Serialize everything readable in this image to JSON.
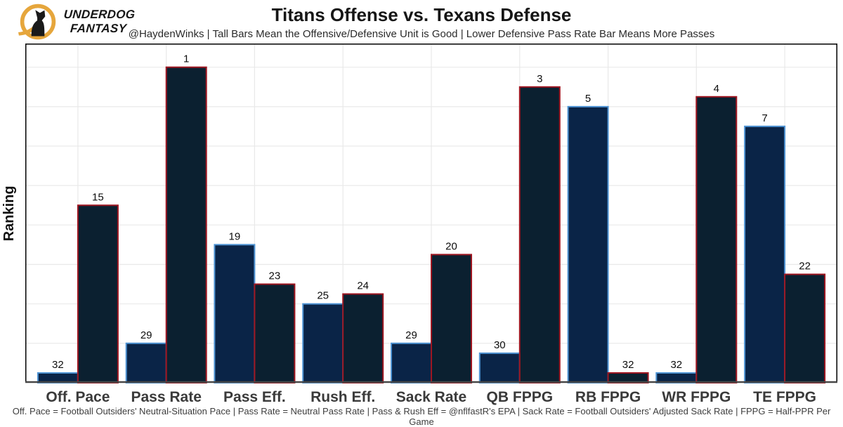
{
  "brand": {
    "line1": "UNDERDOG",
    "line2": "FANTASY"
  },
  "header": {
    "title": "Titans Offense vs. Texans Defense",
    "subtitle": "@HaydenWinks | Tall Bars Mean the Offensive/Defensive Unit is Good | Lower Defensive Pass Rate Bar Means More Passes"
  },
  "footer": {
    "note": "Off. Pace = Football Outsiders' Neutral-Situation Pace | Pass Rate = Neutral Pass Rate | Pass & Rush Eff = @nflfastR's EPA | Sack Rate = Football Outsiders' Adjusted Sack Rate | FPPG = Half-PPR Per Game"
  },
  "chart_data": {
    "type": "bar",
    "title": "Titans Offense vs. Texans Defense",
    "ylabel": "Ranking",
    "categories": [
      "Off. Pace",
      "Pass Rate",
      "Pass Eff.",
      "Rush Eff.",
      "Sack Rate",
      "QB FPPG",
      "RB FPPG",
      "WR FPPG",
      "TE FPPG"
    ],
    "series": [
      {
        "name": "Titans Offense",
        "values": [
          32,
          29,
          19,
          25,
          29,
          30,
          5,
          32,
          7
        ],
        "fill": "#0a2447",
        "stroke": "#4f94d4"
      },
      {
        "name": "Texans Defense",
        "values": [
          15,
          1,
          23,
          24,
          20,
          3,
          32,
          4,
          22
        ],
        "fill": "#0b2030",
        "stroke": "#9e1621"
      }
    ],
    "value_rule": "bar height = 33 - ranking (rank 1 tallest, rank 32 shortest); ranking number printed above each bar",
    "ylim": [
      0,
      34.4
    ],
    "y_tick_labels": "none",
    "grid": true,
    "legend": "none"
  },
  "colors": {
    "grid": "#e9e9e9",
    "plot_border": "#000000",
    "axis_line": "#474747",
    "bar_label": "#0d0d0d",
    "x_label": "#3a3a3a",
    "brand_gold": "#e6a63c",
    "dog_black": "#1a1a1a"
  }
}
